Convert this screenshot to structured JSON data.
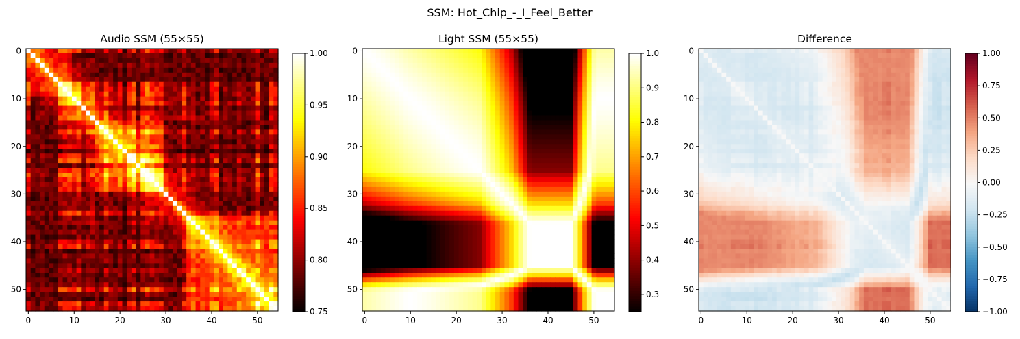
{
  "figure": {
    "suptitle": "SSM: Hot_Chip_-_I_Feel_Better"
  },
  "chart_data": [
    {
      "type": "heatmap",
      "title": "Audio SSM (55×55)",
      "size": 55,
      "colormap": "hot",
      "vmin": 0.75,
      "vmax": 1.0,
      "xticks": [
        0,
        10,
        20,
        30,
        40,
        50
      ],
      "yticks": [
        0,
        10,
        20,
        30,
        40,
        50
      ],
      "colorbar_ticks": [
        "1.00",
        "0.95",
        "0.90",
        "0.85",
        "0.80",
        "0.75"
      ],
      "colorbar_tick_values": [
        1.0,
        0.95,
        0.9,
        0.85,
        0.8,
        0.75
      ],
      "description_values": {
        "diagonal": 1.0,
        "typical_off_diagonal_range": [
          0.75,
          0.95
        ]
      }
    },
    {
      "type": "heatmap",
      "title": "Light SSM (55×55)",
      "size": 55,
      "colormap": "hot",
      "vmin": 0.25,
      "vmax": 1.0,
      "xticks": [
        0,
        10,
        20,
        30,
        40,
        50
      ],
      "yticks": [
        0,
        10,
        20,
        30,
        40,
        50
      ],
      "colorbar_ticks": [
        "1.0",
        "0.9",
        "0.8",
        "0.7",
        "0.6",
        "0.5",
        "0.4",
        "0.3"
      ],
      "colorbar_tick_values": [
        1.0,
        0.9,
        0.8,
        0.7,
        0.6,
        0.5,
        0.4,
        0.3
      ],
      "description_values": {
        "diagonal": 1.0,
        "low_block_rows": [
          36,
          46
        ],
        "low_block_cols": [
          37,
          46
        ]
      }
    },
    {
      "type": "heatmap",
      "title": "Difference",
      "size": 55,
      "colormap": "RdBu_r",
      "vmin": -1.0,
      "vmax": 1.0,
      "xticks": [
        0,
        10,
        20,
        30,
        40,
        50
      ],
      "yticks": [
        0,
        10,
        20,
        30,
        40,
        50
      ],
      "colorbar_ticks": [
        "1.00",
        "0.75",
        "0.50",
        "0.25",
        "0.00",
        "−0.25",
        "−0.50",
        "−0.75",
        "−1.00"
      ],
      "colorbar_tick_values": [
        1.0,
        0.75,
        0.5,
        0.25,
        0.0,
        -0.25,
        -0.5,
        -0.75,
        -1.0
      ]
    }
  ]
}
